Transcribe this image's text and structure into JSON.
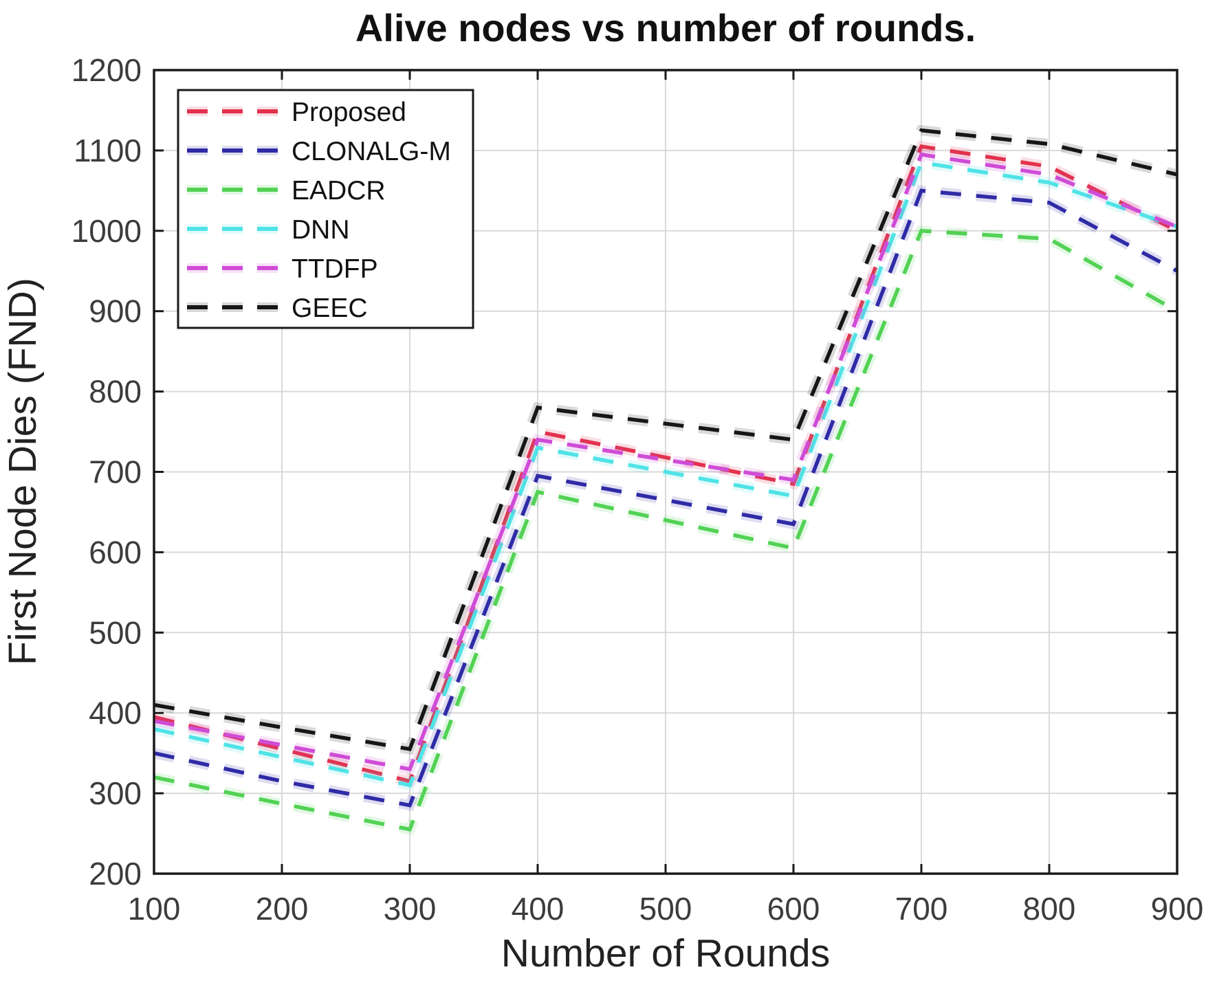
{
  "figure": {
    "title": "Alive nodes vs number of rounds.",
    "xlabel": "Number of Rounds",
    "ylabel": "First Node Dies (FND)"
  },
  "colors": {
    "background": "#ffffff",
    "axis": "#1a1a1a",
    "grid": "#d9d9d9",
    "tick_label": "#3c3c3c",
    "title": "#111111",
    "axis_label": "#222222"
  },
  "legend": {
    "position": "upper-left",
    "entries": [
      {
        "label": "Proposed",
        "color": "#e2324e"
      },
      {
        "label": "CLONALG-M",
        "color": "#2f2ba6"
      },
      {
        "label": "EADCR",
        "color": "#52d254"
      },
      {
        "label": "DNN",
        "color": "#4fe3e6"
      },
      {
        "label": "TTDFP",
        "color": "#cf4cd6"
      },
      {
        "label": "GEEC",
        "color": "#161616"
      }
    ]
  },
  "chart_data": {
    "type": "line",
    "title": "Alive nodes vs number of rounds.",
    "xlabel": "Number of Rounds",
    "ylabel": "First Node Dies (FND)",
    "line_style": "dashed",
    "grid": true,
    "legend_position": "upper-left",
    "xlim": [
      100,
      900
    ],
    "ylim": [
      200,
      1200
    ],
    "x_ticks": [
      100,
      200,
      300,
      400,
      500,
      600,
      700,
      800,
      900
    ],
    "y_ticks": [
      200,
      300,
      400,
      500,
      600,
      700,
      800,
      900,
      1000,
      1100,
      1200
    ],
    "x": [
      100,
      200,
      300,
      400,
      500,
      600,
      700,
      800,
      900
    ],
    "series": [
      {
        "name": "Proposed",
        "color": "#e2324e",
        "values": [
          395,
          355,
          315,
          750,
          718,
          685,
          1105,
          1080,
          1000
        ]
      },
      {
        "name": "CLONALG-M",
        "color": "#2f2ba6",
        "values": [
          350,
          315,
          285,
          695,
          665,
          635,
          1050,
          1035,
          950
        ]
      },
      {
        "name": "EADCR",
        "color": "#52d254",
        "values": [
          320,
          287,
          255,
          675,
          640,
          605,
          1000,
          990,
          900
        ]
      },
      {
        "name": "DNN",
        "color": "#4fe3e6",
        "values": [
          380,
          345,
          310,
          730,
          700,
          670,
          1085,
          1060,
          1005
        ]
      },
      {
        "name": "TTDFP",
        "color": "#cf4cd6",
        "values": [
          390,
          360,
          330,
          740,
          715,
          690,
          1095,
          1070,
          1005
        ]
      },
      {
        "name": "GEEC",
        "color": "#161616",
        "values": [
          410,
          382,
          355,
          780,
          760,
          740,
          1125,
          1108,
          1070
        ]
      }
    ]
  }
}
